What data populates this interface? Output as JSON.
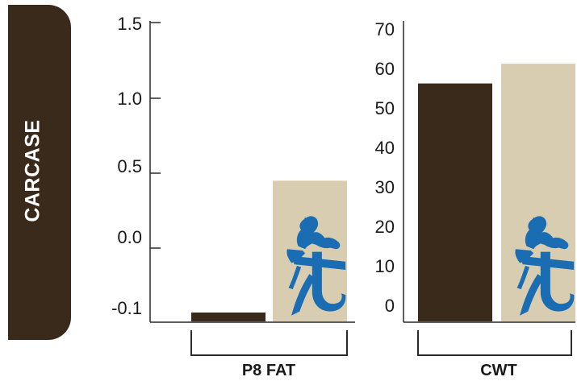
{
  "side_tab": {
    "label": "CARCASE"
  },
  "colors": {
    "dark_bar": "#3a2a1c",
    "light_bar": "#d8cdb0",
    "logo_blue": "#1b6db3",
    "side_tab": "#3a2a1c"
  },
  "logo_icon": "horse-rider-icon",
  "chart_data": [
    {
      "type": "bar",
      "category": "P8 FAT",
      "title": "",
      "ylabel": "",
      "y_tick_labels": [
        "-0.1",
        "0.0",
        "0.5",
        "1.0",
        "1.5"
      ],
      "series": [
        {
          "color": "#3a2a1c",
          "values": [
            -0.03
          ]
        },
        {
          "color": "#d8cdb0",
          "values": [
            0.45
          ]
        }
      ],
      "grid": false,
      "legend": "none"
    },
    {
      "type": "bar",
      "category": "CWT",
      "title": "",
      "ylabel": "",
      "y_tick_labels": [
        "0",
        "10",
        "20",
        "30",
        "40",
        "50",
        "60",
        "70"
      ],
      "ylim": [
        -5,
        70
      ],
      "series": [
        {
          "color": "#3a2a1c",
          "values": [
            56
          ]
        },
        {
          "color": "#d8cdb0",
          "values": [
            61
          ]
        }
      ],
      "grid": false,
      "legend": "none"
    }
  ]
}
